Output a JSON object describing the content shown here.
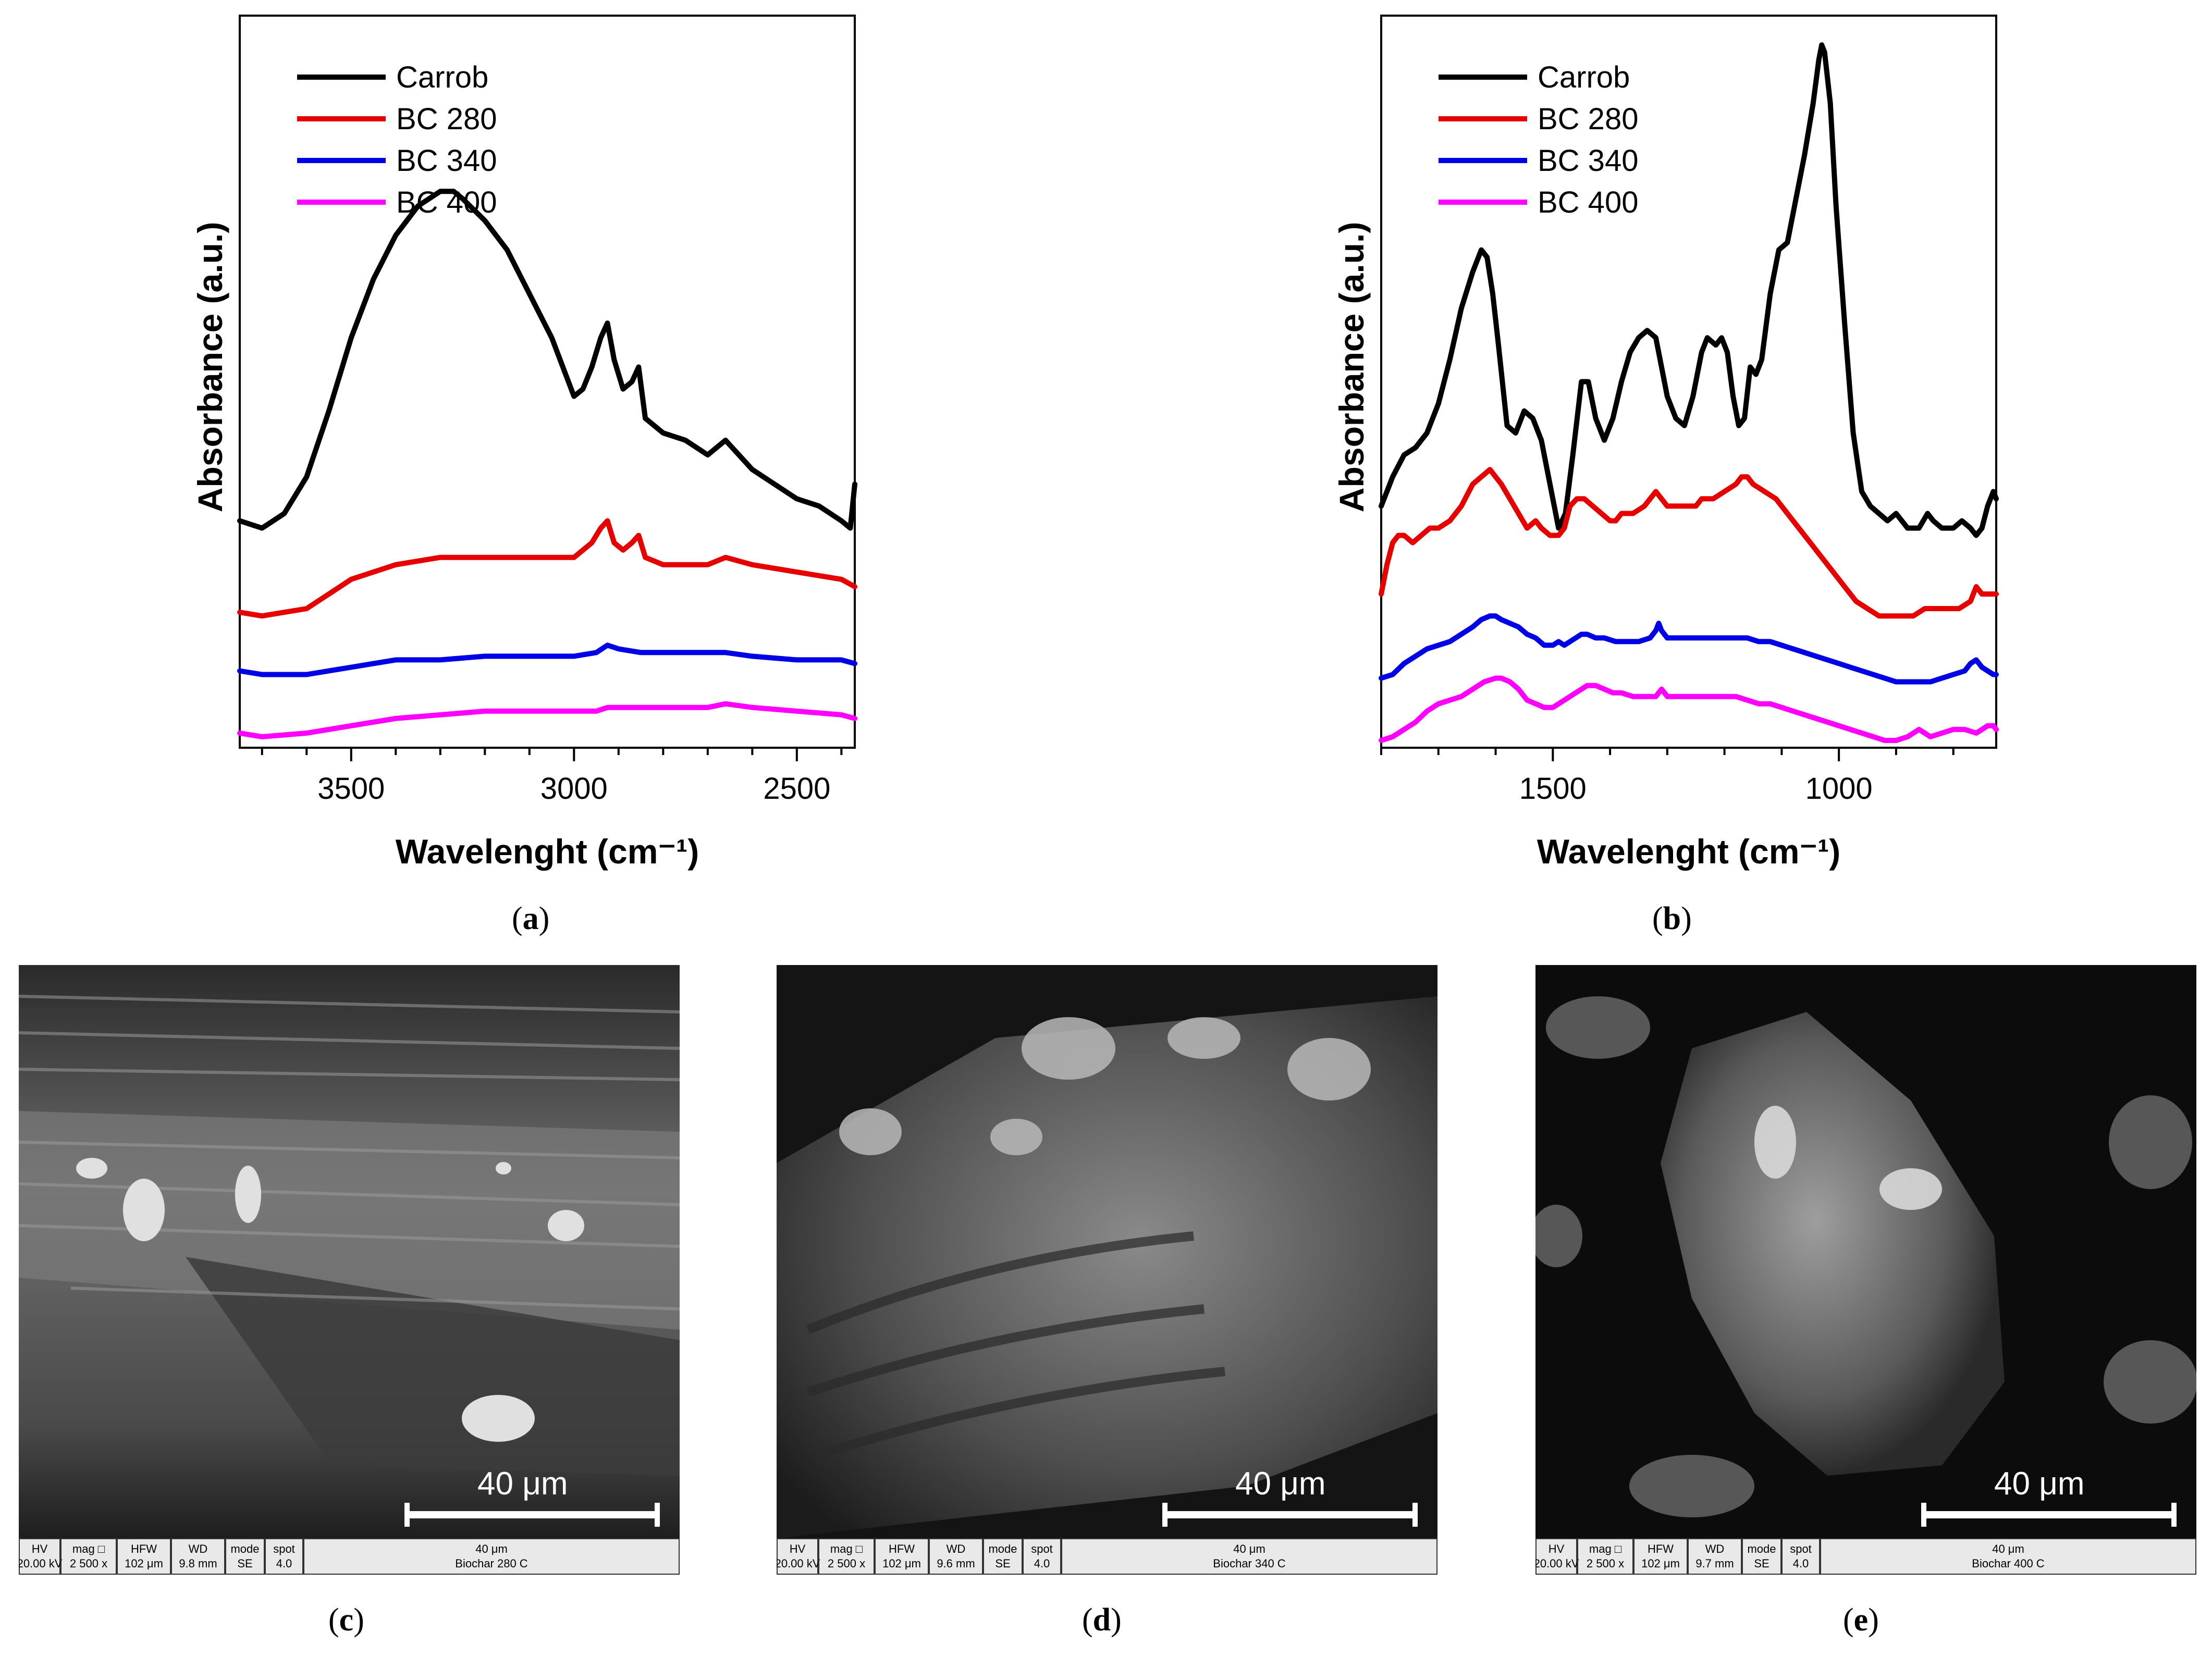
{
  "chart_data": [
    {
      "type": "line",
      "panel": "a",
      "xlabel": "Wavelenght (cm⁻¹)",
      "ylabel": "Absorbance (a.u.)",
      "xlim": [
        3750,
        2370
      ],
      "ylim": [
        0,
        1
      ],
      "x_ticks": [
        3500,
        3000,
        2500
      ],
      "legend": [
        "Carrob",
        "BC 280",
        "BC 340",
        "BC 400"
      ],
      "colors": [
        "#000000",
        "#e60000",
        "#0000e6",
        "#ff00ff"
      ],
      "series": [
        {
          "name": "Carrob",
          "x": [
            3750,
            3700,
            3650,
            3600,
            3550,
            3500,
            3450,
            3400,
            3350,
            3300,
            3270,
            3250,
            3200,
            3150,
            3100,
            3050,
            3000,
            2980,
            2960,
            2940,
            2925,
            2910,
            2890,
            2870,
            2855,
            2840,
            2800,
            2750,
            2700,
            2660,
            2600,
            2500,
            2450,
            2400,
            2380,
            2370
          ],
          "y": [
            0.31,
            0.3,
            0.32,
            0.37,
            0.46,
            0.56,
            0.64,
            0.7,
            0.74,
            0.76,
            0.76,
            0.75,
            0.72,
            0.68,
            0.62,
            0.56,
            0.48,
            0.49,
            0.52,
            0.56,
            0.58,
            0.53,
            0.49,
            0.5,
            0.52,
            0.45,
            0.43,
            0.42,
            0.4,
            0.42,
            0.38,
            0.34,
            0.33,
            0.31,
            0.3,
            0.36
          ]
        },
        {
          "name": "BC 280",
          "x": [
            3750,
            3700,
            3600,
            3550,
            3500,
            3400,
            3300,
            3200,
            3100,
            3000,
            2960,
            2940,
            2925,
            2910,
            2890,
            2870,
            2855,
            2840,
            2800,
            2700,
            2660,
            2600,
            2500,
            2400,
            2370
          ],
          "y": [
            0.185,
            0.18,
            0.19,
            0.21,
            0.23,
            0.25,
            0.26,
            0.26,
            0.26,
            0.26,
            0.28,
            0.3,
            0.31,
            0.28,
            0.27,
            0.28,
            0.29,
            0.26,
            0.25,
            0.25,
            0.26,
            0.25,
            0.24,
            0.23,
            0.22
          ]
        },
        {
          "name": "BC 340",
          "x": [
            3750,
            3700,
            3600,
            3500,
            3400,
            3300,
            3200,
            3100,
            3000,
            2950,
            2925,
            2900,
            2850,
            2800,
            2700,
            2660,
            2600,
            2500,
            2400,
            2370
          ],
          "y": [
            0.105,
            0.1,
            0.1,
            0.11,
            0.12,
            0.12,
            0.125,
            0.125,
            0.125,
            0.13,
            0.14,
            0.135,
            0.13,
            0.13,
            0.13,
            0.13,
            0.125,
            0.12,
            0.12,
            0.115
          ]
        },
        {
          "name": "BC 400",
          "x": [
            3750,
            3700,
            3600,
            3500,
            3400,
            3300,
            3200,
            3100,
            3000,
            2950,
            2925,
            2900,
            2800,
            2700,
            2660,
            2600,
            2500,
            2400,
            2370
          ],
          "y": [
            0.02,
            0.015,
            0.02,
            0.03,
            0.04,
            0.045,
            0.05,
            0.05,
            0.05,
            0.05,
            0.055,
            0.055,
            0.055,
            0.055,
            0.06,
            0.055,
            0.05,
            0.045,
            0.04
          ]
        }
      ]
    },
    {
      "type": "line",
      "panel": "b",
      "xlabel": "Wavelenght (cm⁻¹)",
      "ylabel": "Absorbance (a.u.)",
      "xlim": [
        1800,
        725
      ],
      "ylim": [
        0,
        1
      ],
      "x_ticks": [
        1500,
        1000
      ],
      "legend": [
        "Carrob",
        "BC 280",
        "BC 340",
        "BC 400"
      ],
      "colors": [
        "#000000",
        "#e60000",
        "#0000e6",
        "#ff00ff"
      ],
      "series": [
        {
          "name": "Carrob",
          "x": [
            1800,
            1780,
            1760,
            1740,
            1720,
            1700,
            1680,
            1660,
            1640,
            1625,
            1615,
            1605,
            1595,
            1580,
            1565,
            1550,
            1535,
            1520,
            1505,
            1490,
            1478,
            1465,
            1450,
            1438,
            1425,
            1410,
            1395,
            1380,
            1365,
            1350,
            1335,
            1320,
            1310,
            1300,
            1285,
            1270,
            1255,
            1240,
            1230,
            1215,
            1205,
            1195,
            1185,
            1175,
            1165,
            1155,
            1145,
            1135,
            1120,
            1105,
            1090,
            1075,
            1060,
            1045,
            1035,
            1030,
            1025,
            1015,
            1005,
            990,
            975,
            960,
            945,
            930,
            915,
            900,
            880,
            860,
            845,
            835,
            820,
            800,
            785,
            770,
            760,
            750,
            740,
            730,
            725
          ],
          "y": [
            0.33,
            0.37,
            0.4,
            0.41,
            0.43,
            0.47,
            0.53,
            0.6,
            0.65,
            0.68,
            0.67,
            0.62,
            0.55,
            0.44,
            0.43,
            0.46,
            0.45,
            0.42,
            0.36,
            0.3,
            0.32,
            0.4,
            0.5,
            0.5,
            0.45,
            0.42,
            0.45,
            0.5,
            0.54,
            0.56,
            0.57,
            0.56,
            0.52,
            0.48,
            0.45,
            0.44,
            0.48,
            0.54,
            0.56,
            0.55,
            0.56,
            0.54,
            0.48,
            0.44,
            0.45,
            0.52,
            0.51,
            0.53,
            0.62,
            0.68,
            0.69,
            0.75,
            0.81,
            0.88,
            0.94,
            0.96,
            0.95,
            0.88,
            0.74,
            0.58,
            0.43,
            0.35,
            0.33,
            0.32,
            0.31,
            0.32,
            0.3,
            0.3,
            0.32,
            0.31,
            0.3,
            0.3,
            0.31,
            0.3,
            0.29,
            0.3,
            0.33,
            0.35,
            0.34
          ]
        },
        {
          "name": "BC 280",
          "x": [
            1800,
            1790,
            1780,
            1770,
            1760,
            1745,
            1730,
            1715,
            1700,
            1680,
            1660,
            1640,
            1625,
            1610,
            1600,
            1590,
            1575,
            1560,
            1545,
            1530,
            1520,
            1505,
            1490,
            1480,
            1470,
            1458,
            1445,
            1430,
            1415,
            1400,
            1390,
            1380,
            1360,
            1340,
            1330,
            1320,
            1310,
            1300,
            1290,
            1280,
            1270,
            1260,
            1250,
            1240,
            1220,
            1200,
            1180,
            1170,
            1160,
            1150,
            1130,
            1110,
            1090,
            1070,
            1050,
            1030,
            1010,
            990,
            970,
            950,
            930,
            910,
            890,
            870,
            850,
            830,
            810,
            790,
            770,
            760,
            750,
            740,
            730,
            725
          ],
          "y": [
            0.21,
            0.25,
            0.28,
            0.29,
            0.29,
            0.28,
            0.29,
            0.3,
            0.3,
            0.31,
            0.33,
            0.36,
            0.37,
            0.38,
            0.37,
            0.36,
            0.34,
            0.32,
            0.3,
            0.31,
            0.3,
            0.29,
            0.29,
            0.3,
            0.33,
            0.34,
            0.34,
            0.33,
            0.32,
            0.31,
            0.31,
            0.32,
            0.32,
            0.33,
            0.34,
            0.35,
            0.34,
            0.33,
            0.33,
            0.33,
            0.33,
            0.33,
            0.33,
            0.34,
            0.34,
            0.35,
            0.36,
            0.37,
            0.37,
            0.36,
            0.35,
            0.34,
            0.32,
            0.3,
            0.28,
            0.26,
            0.24,
            0.22,
            0.2,
            0.19,
            0.18,
            0.18,
            0.18,
            0.18,
            0.19,
            0.19,
            0.19,
            0.19,
            0.2,
            0.22,
            0.21,
            0.21,
            0.21,
            0.21
          ]
        },
        {
          "name": "BC 340",
          "x": [
            1800,
            1780,
            1760,
            1740,
            1720,
            1700,
            1680,
            1660,
            1640,
            1625,
            1610,
            1600,
            1590,
            1575,
            1560,
            1545,
            1530,
            1515,
            1500,
            1490,
            1480,
            1470,
            1460,
            1450,
            1440,
            1425,
            1410,
            1390,
            1370,
            1350,
            1330,
            1320,
            1315,
            1310,
            1300,
            1290,
            1270,
            1250,
            1230,
            1200,
            1180,
            1160,
            1140,
            1120,
            1100,
            1080,
            1060,
            1040,
            1020,
            1000,
            980,
            960,
            940,
            920,
            900,
            880,
            860,
            840,
            820,
            800,
            780,
            770,
            760,
            750,
            740,
            730,
            725
          ],
          "y": [
            0.095,
            0.1,
            0.115,
            0.125,
            0.135,
            0.14,
            0.145,
            0.155,
            0.165,
            0.175,
            0.18,
            0.18,
            0.175,
            0.17,
            0.165,
            0.155,
            0.15,
            0.14,
            0.14,
            0.145,
            0.14,
            0.145,
            0.15,
            0.155,
            0.155,
            0.15,
            0.15,
            0.145,
            0.145,
            0.145,
            0.15,
            0.16,
            0.17,
            0.16,
            0.15,
            0.15,
            0.15,
            0.15,
            0.15,
            0.15,
            0.15,
            0.15,
            0.145,
            0.145,
            0.14,
            0.135,
            0.13,
            0.125,
            0.12,
            0.115,
            0.11,
            0.105,
            0.1,
            0.095,
            0.09,
            0.09,
            0.09,
            0.09,
            0.095,
            0.1,
            0.105,
            0.115,
            0.12,
            0.11,
            0.105,
            0.1,
            0.1
          ]
        },
        {
          "name": "BC 400",
          "x": [
            1800,
            1780,
            1760,
            1740,
            1720,
            1700,
            1680,
            1660,
            1640,
            1620,
            1600,
            1590,
            1575,
            1560,
            1545,
            1530,
            1515,
            1500,
            1490,
            1480,
            1470,
            1460,
            1450,
            1440,
            1425,
            1410,
            1395,
            1380,
            1360,
            1340,
            1320,
            1315,
            1310,
            1300,
            1280,
            1260,
            1240,
            1220,
            1200,
            1180,
            1160,
            1140,
            1120,
            1100,
            1080,
            1060,
            1040,
            1020,
            1000,
            980,
            960,
            940,
            920,
            900,
            880,
            870,
            860,
            850,
            840,
            820,
            800,
            780,
            760,
            750,
            740,
            730,
            725
          ],
          "y": [
            0.01,
            0.015,
            0.025,
            0.035,
            0.05,
            0.06,
            0.065,
            0.07,
            0.08,
            0.09,
            0.095,
            0.095,
            0.09,
            0.08,
            0.065,
            0.06,
            0.055,
            0.055,
            0.06,
            0.065,
            0.07,
            0.075,
            0.08,
            0.085,
            0.085,
            0.08,
            0.075,
            0.075,
            0.07,
            0.07,
            0.07,
            0.075,
            0.08,
            0.07,
            0.07,
            0.07,
            0.07,
            0.07,
            0.07,
            0.07,
            0.065,
            0.06,
            0.06,
            0.055,
            0.05,
            0.045,
            0.04,
            0.035,
            0.03,
            0.025,
            0.02,
            0.015,
            0.01,
            0.01,
            0.015,
            0.02,
            0.025,
            0.02,
            0.015,
            0.02,
            0.025,
            0.025,
            0.02,
            0.025,
            0.03,
            0.03,
            0.025
          ]
        }
      ]
    }
  ],
  "labels": {
    "a": "a",
    "b": "b",
    "c": "c",
    "d": "d",
    "e": "e"
  },
  "sem": [
    {
      "panel": "c",
      "scale": "40 μm",
      "hv": "20.00 kV",
      "mag": "2 500 x",
      "hfw": "102 μm",
      "wd": "9.8 mm",
      "mode": "SE",
      "spot": "4.0",
      "bar": "40 μm",
      "name": "Biochar 280 C"
    },
    {
      "panel": "d",
      "scale": "40 μm",
      "hv": "20.00 kV",
      "mag": "2 500 x",
      "hfw": "102 μm",
      "wd": "9.6 mm",
      "mode": "SE",
      "spot": "4.0",
      "bar": "40 μm",
      "name": "Biochar 340 C"
    },
    {
      "panel": "e",
      "scale": "40 μm",
      "hv": "20.00 kV",
      "mag": "2 500 x",
      "hfw": "102 μm",
      "wd": "9.7 mm",
      "mode": "SE",
      "spot": "4.0",
      "bar": "40 μm",
      "name": "Biochar 400 C"
    }
  ],
  "infobar_headers": {
    "hv": "HV",
    "mag": "mag □",
    "hfw": "HFW",
    "wd": "WD",
    "mode": "mode",
    "spot": "spot"
  }
}
